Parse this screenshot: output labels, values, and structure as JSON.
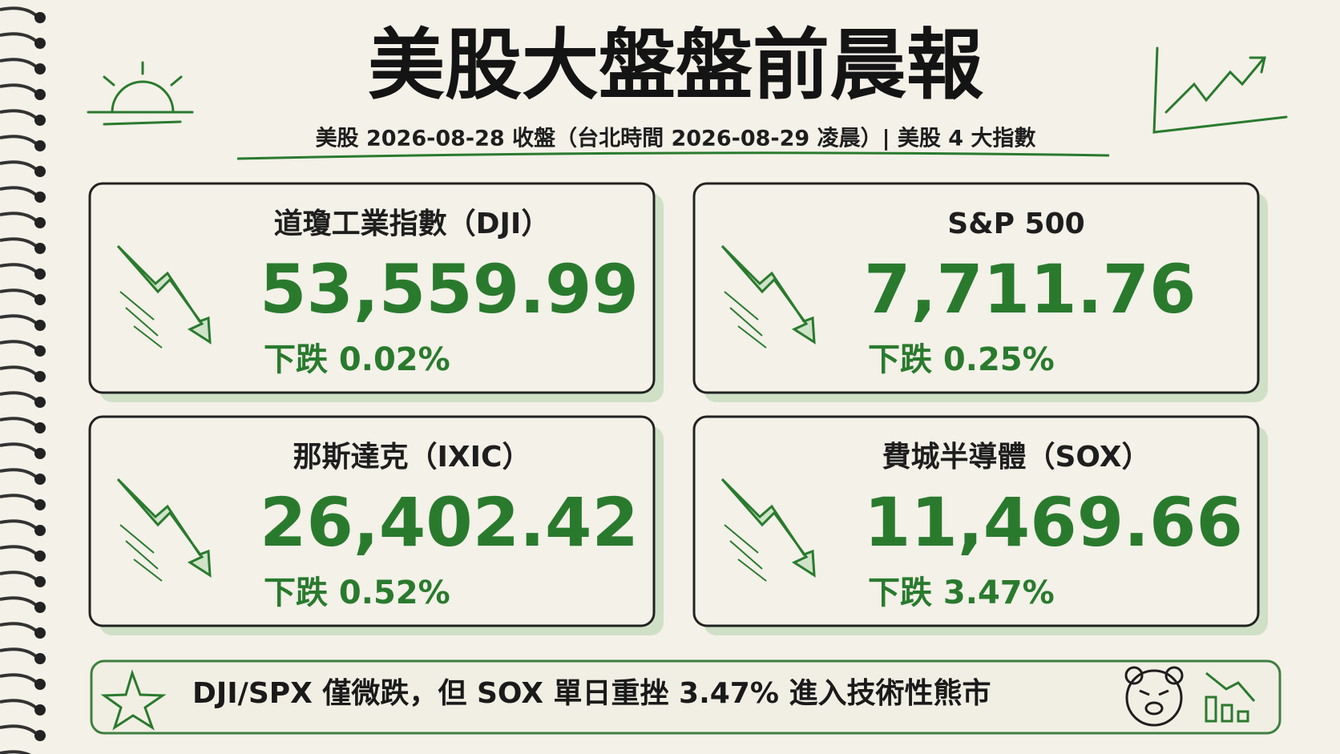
{
  "header": {
    "title": "美股大盤盤前晨報",
    "subtitle": "美股 2026-08-28 收盤（台北時間 2026-08-29 凌晨）| 美股 4 大指數"
  },
  "cards": [
    {
      "name": "道瓊工業指數（DJI）",
      "value": "53,559.99",
      "change": "下跌 0.02%"
    },
    {
      "name": "S&P 500",
      "value": "7,711.76",
      "change": "下跌 0.25%"
    },
    {
      "name": "那斯達克（IXIC）",
      "value": "26,402.42",
      "change": "下跌 0.52%"
    },
    {
      "name": "費城半導體（SOX）",
      "value": "11,469.66",
      "change": "下跌 3.47%"
    }
  ],
  "footer": {
    "text": "DJI/SPX 僅微跌，但 SOX 單日重挫 3.47% 進入技術性熊市"
  }
}
